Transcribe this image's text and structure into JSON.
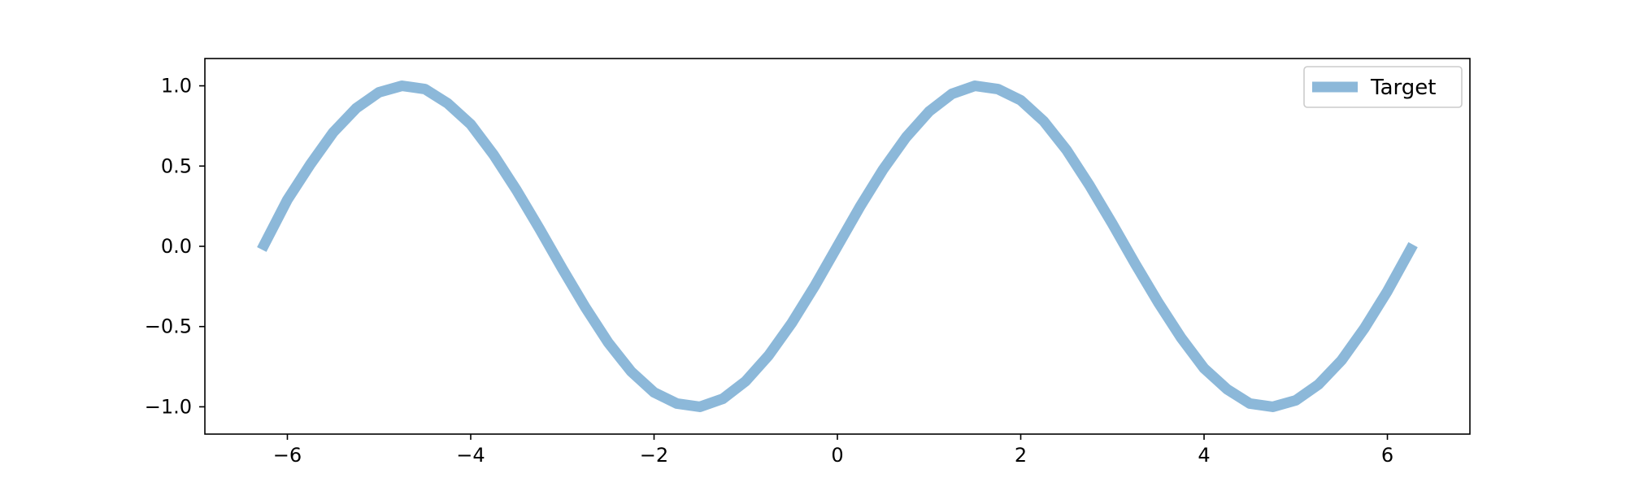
{
  "chart_data": {
    "type": "line",
    "title": "",
    "xlabel": "",
    "ylabel": "",
    "xlim": [
      -6.9,
      6.9
    ],
    "ylim": [
      -1.17,
      1.17
    ],
    "xticks": [
      -6,
      -4,
      -2,
      0,
      2,
      4,
      6
    ],
    "yticks": [
      -1.0,
      -0.5,
      0.0,
      0.5,
      1.0
    ],
    "xtick_labels": [
      "−6",
      "−4",
      "−2",
      "0",
      "2",
      "4",
      "6"
    ],
    "ytick_labels": [
      "−1.0",
      "−0.5",
      "0.0",
      "0.5",
      "1.0"
    ],
    "grid": false,
    "legend_position": "top-right",
    "series": [
      {
        "name": "Target",
        "color": "#8cb8d9",
        "function": "sin(x) with small noise",
        "x": [
          -6.28,
          -6.0,
          -5.75,
          -5.5,
          -5.25,
          -5.0,
          -4.75,
          -4.5,
          -4.25,
          -4.0,
          -3.75,
          -3.5,
          -3.25,
          -3.0,
          -2.75,
          -2.5,
          -2.25,
          -2.0,
          -1.75,
          -1.5,
          -1.25,
          -1.0,
          -0.75,
          -0.5,
          -0.25,
          0.0,
          0.25,
          0.5,
          0.75,
          1.0,
          1.25,
          1.5,
          1.75,
          2.0,
          2.25,
          2.5,
          2.75,
          3.0,
          3.25,
          3.5,
          3.75,
          4.0,
          4.25,
          4.5,
          4.75,
          5.0,
          5.25,
          5.5,
          5.75,
          6.0,
          6.28
        ],
        "y": [
          -0.02,
          0.29,
          0.51,
          0.71,
          0.86,
          0.96,
          1.0,
          0.98,
          0.89,
          0.76,
          0.57,
          0.35,
          0.11,
          -0.14,
          -0.38,
          -0.6,
          -0.78,
          -0.91,
          -0.98,
          -1.0,
          -0.95,
          -0.84,
          -0.68,
          -0.48,
          -0.25,
          0.0,
          0.25,
          0.48,
          0.68,
          0.84,
          0.95,
          1.0,
          0.98,
          0.91,
          0.78,
          0.6,
          0.38,
          0.14,
          -0.11,
          -0.35,
          -0.57,
          -0.76,
          -0.89,
          -0.98,
          -1.0,
          -0.96,
          -0.86,
          -0.71,
          -0.51,
          -0.28,
          0.01
        ]
      }
    ]
  }
}
